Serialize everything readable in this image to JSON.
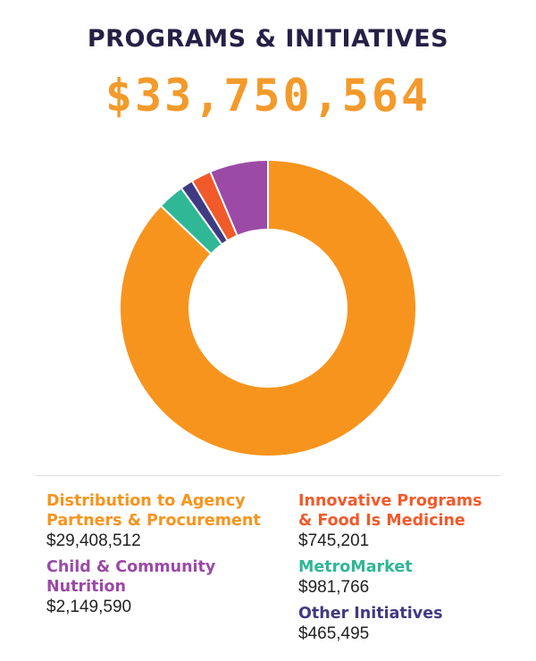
{
  "title": "PROGRAMS & INITIATIVES",
  "total": "$33,750,564",
  "chart_data": {
    "type": "pie",
    "style": "donut",
    "title": "PROGRAMS & INITIATIVES",
    "total": 33750564,
    "legend_placement": "bottom",
    "slices": [
      {
        "label_lines": [
          "Distribution to Agency",
          "Partners & Procurement"
        ],
        "value": 29408512,
        "value_text": "$29,408,512",
        "color": "#f7941d"
      },
      {
        "label_lines": [
          "Innovative Programs",
          "& Food Is Medicine"
        ],
        "value": 745201,
        "value_text": "$745,201",
        "color": "#f15a2b"
      },
      {
        "label_lines": [
          "Child & Community",
          "Nutrition"
        ],
        "value": 2149590,
        "value_text": "$2,149,590",
        "color": "#9b4aa6"
      },
      {
        "label_lines": [
          "MetroMarket"
        ],
        "value": 981766,
        "value_text": "$981,766",
        "color": "#2fb796"
      },
      {
        "label_lines": [
          "Other Initiatives"
        ],
        "value": 465495,
        "value_text": "$465,495",
        "color": "#403a82"
      }
    ],
    "clockwise_order_from_top": [
      0,
      3,
      4,
      1,
      2
    ]
  }
}
